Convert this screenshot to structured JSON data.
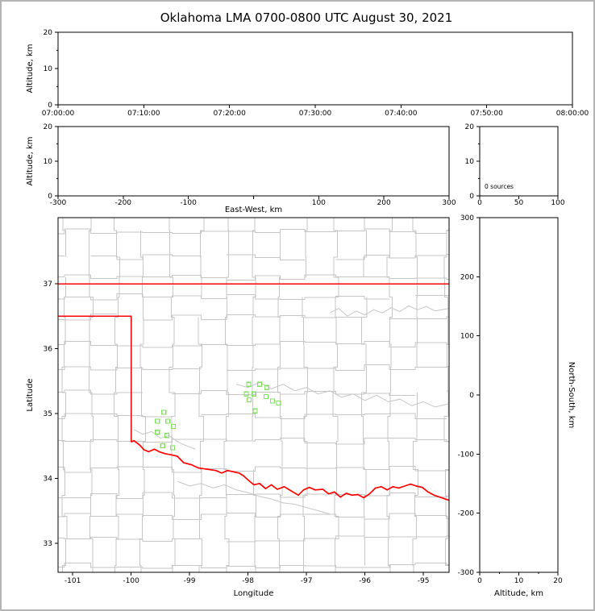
{
  "chart_data": {
    "type": "scatter",
    "subtype": "lma-multi-panel",
    "title": "Oklahoma LMA 0700-0800 UTC August 30, 2021",
    "colors": {
      "axis": "#000000",
      "county_lines": "#c6c6c6",
      "gray_rivers": "#c6c6c6",
      "state_border": "#ff0000",
      "red_river": "#ff0000",
      "station_marker": "#7fe25b",
      "frame": "#b4b4b4"
    },
    "panels": [
      {
        "id": "time_height",
        "type": "scatter",
        "xlabel": "",
        "ylabel": "Altitude, km",
        "xlim": [
          0,
          6
        ],
        "ylim": [
          0,
          20
        ],
        "xticks": [
          0,
          1,
          2,
          3,
          4,
          5,
          6
        ],
        "xtick_labels": [
          "07:00:00",
          "07:10:00",
          "07:20:00",
          "07:30:00",
          "07:40:00",
          "07:50:00",
          "08:00:00"
        ],
        "yticks": [
          0,
          10,
          20
        ],
        "yticks_minor": [
          5,
          15
        ],
        "points": []
      },
      {
        "id": "ew_height",
        "type": "scatter",
        "xlabel": "East-West, km",
        "ylabel": "Altitude, km",
        "xlim": [
          -300,
          300
        ],
        "ylim": [
          0,
          20
        ],
        "xticks": [
          -300,
          -200,
          -100,
          0,
          100,
          200,
          300
        ],
        "xtick_label_skip": [
          0
        ],
        "yticks": [
          0,
          10,
          20
        ],
        "yticks_minor": [
          5,
          15
        ],
        "points": []
      },
      {
        "id": "alt_hist",
        "type": "histogram",
        "annotation": "0 sources",
        "xlim": [
          0,
          100
        ],
        "ylim": [
          0,
          20
        ],
        "xticks": [
          0,
          50,
          100
        ],
        "yticks": [
          0,
          10,
          20
        ],
        "yticks_minor": [
          5,
          15
        ],
        "values": []
      },
      {
        "id": "map",
        "type": "map",
        "xlabel": "Longitude",
        "ylabel": "Latitude",
        "xlim": [
          -101.25,
          -94.56
        ],
        "ylim": [
          32.55,
          38.02
        ],
        "xticks": [
          -101,
          -100,
          -99,
          -98,
          -97,
          -96,
          -95
        ],
        "yticks": [
          33,
          34,
          35,
          36,
          37
        ],
        "stations": [
          [
            -99.44,
            35.02
          ],
          [
            -99.55,
            34.88
          ],
          [
            -99.37,
            34.88
          ],
          [
            -99.28,
            34.8
          ],
          [
            -99.55,
            34.71
          ],
          [
            -99.39,
            34.66
          ],
          [
            -99.46,
            34.5
          ],
          [
            -99.29,
            34.47
          ],
          [
            -97.99,
            35.45
          ],
          [
            -97.8,
            35.45
          ],
          [
            -97.68,
            35.4
          ],
          [
            -98.03,
            35.3
          ],
          [
            -97.9,
            35.3
          ],
          [
            -97.98,
            35.21
          ],
          [
            -97.69,
            35.26
          ],
          [
            -97.58,
            35.19
          ],
          [
            -97.48,
            35.16
          ],
          [
            -97.88,
            35.04
          ]
        ],
        "state_border_north": [
          [
            -101.25,
            37.0
          ],
          [
            -94.56,
            37.0
          ]
        ],
        "state_border_west": [
          [
            -101.25,
            36.5
          ],
          [
            -100.0,
            36.5
          ],
          [
            -100.0,
            34.56
          ]
        ],
        "red_river": [
          [
            -100.0,
            34.56
          ],
          [
            -99.95,
            34.58
          ],
          [
            -99.85,
            34.51
          ],
          [
            -99.78,
            34.44
          ],
          [
            -99.7,
            34.41
          ],
          [
            -99.6,
            34.45
          ],
          [
            -99.52,
            34.41
          ],
          [
            -99.42,
            34.38
          ],
          [
            -99.3,
            34.36
          ],
          [
            -99.21,
            34.34
          ],
          [
            -99.1,
            34.24
          ],
          [
            -98.97,
            34.21
          ],
          [
            -98.85,
            34.16
          ],
          [
            -98.7,
            34.14
          ],
          [
            -98.55,
            34.12
          ],
          [
            -98.45,
            34.08
          ],
          [
            -98.35,
            34.12
          ],
          [
            -98.25,
            34.1
          ],
          [
            -98.15,
            34.08
          ],
          [
            -98.08,
            34.04
          ],
          [
            -97.98,
            33.96
          ],
          [
            -97.9,
            33.9
          ],
          [
            -97.8,
            33.92
          ],
          [
            -97.7,
            33.84
          ],
          [
            -97.6,
            33.9
          ],
          [
            -97.5,
            33.83
          ],
          [
            -97.38,
            33.87
          ],
          [
            -97.25,
            33.8
          ],
          [
            -97.14,
            33.74
          ],
          [
            -97.05,
            33.82
          ],
          [
            -96.95,
            33.86
          ],
          [
            -96.85,
            33.82
          ],
          [
            -96.72,
            33.83
          ],
          [
            -96.62,
            33.76
          ],
          [
            -96.52,
            33.79
          ],
          [
            -96.42,
            33.71
          ],
          [
            -96.32,
            33.77
          ],
          [
            -96.22,
            33.74
          ],
          [
            -96.12,
            33.75
          ],
          [
            -96.02,
            33.7
          ],
          [
            -95.92,
            33.76
          ],
          [
            -95.82,
            33.85
          ],
          [
            -95.72,
            33.87
          ],
          [
            -95.62,
            33.82
          ],
          [
            -95.52,
            33.87
          ],
          [
            -95.42,
            33.85
          ],
          [
            -95.32,
            33.88
          ],
          [
            -95.22,
            33.91
          ],
          [
            -95.12,
            33.88
          ],
          [
            -95.02,
            33.86
          ],
          [
            -94.92,
            33.79
          ],
          [
            -94.82,
            33.74
          ],
          [
            -94.72,
            33.71
          ],
          [
            -94.56,
            33.66
          ]
        ],
        "gray_rivers": [
          [
            [
              -96.6,
              36.55
            ],
            [
              -96.45,
              36.62
            ],
            [
              -96.3,
              36.5
            ],
            [
              -96.15,
              36.58
            ],
            [
              -96.0,
              36.52
            ],
            [
              -95.85,
              36.6
            ],
            [
              -95.7,
              36.55
            ],
            [
              -95.55,
              36.63
            ],
            [
              -95.4,
              36.57
            ],
            [
              -95.25,
              36.66
            ],
            [
              -95.1,
              36.6
            ],
            [
              -94.95,
              36.65
            ],
            [
              -94.8,
              36.58
            ],
            [
              -94.56,
              36.62
            ]
          ],
          [
            [
              -98.2,
              35.45
            ],
            [
              -98.0,
              35.4
            ],
            [
              -97.8,
              35.48
            ],
            [
              -97.6,
              35.38
            ],
            [
              -97.4,
              35.45
            ],
            [
              -97.2,
              35.35
            ],
            [
              -97.0,
              35.4
            ],
            [
              -96.8,
              35.3
            ],
            [
              -96.6,
              35.35
            ],
            [
              -96.4,
              35.25
            ],
            [
              -96.2,
              35.3
            ],
            [
              -96.0,
              35.2
            ],
            [
              -95.8,
              35.28
            ],
            [
              -95.6,
              35.18
            ],
            [
              -95.4,
              35.22
            ],
            [
              -95.2,
              35.12
            ],
            [
              -95.0,
              35.18
            ],
            [
              -94.8,
              35.1
            ],
            [
              -94.56,
              35.15
            ]
          ],
          [
            [
              -99.2,
              33.95
            ],
            [
              -99.0,
              33.88
            ],
            [
              -98.8,
              33.92
            ],
            [
              -98.6,
              33.85
            ],
            [
              -98.4,
              33.9
            ],
            [
              -98.2,
              33.82
            ],
            [
              -98.0,
              33.78
            ],
            [
              -97.8,
              33.72
            ],
            [
              -97.6,
              33.68
            ],
            [
              -97.4,
              33.62
            ],
            [
              -97.2,
              33.6
            ],
            [
              -97.0,
              33.55
            ],
            [
              -96.8,
              33.5
            ],
            [
              -96.6,
              33.45
            ]
          ],
          [
            [
              -99.95,
              34.75
            ],
            [
              -99.8,
              34.68
            ],
            [
              -99.65,
              34.72
            ],
            [
              -99.5,
              34.62
            ],
            [
              -99.35,
              34.66
            ],
            [
              -99.2,
              34.56
            ],
            [
              -99.05,
              34.5
            ],
            [
              -98.9,
              34.45
            ]
          ]
        ],
        "county_grid": {
          "seed": 20210830,
          "lon_start": -101.6,
          "lon_end": -94.3,
          "lat_start": 32.2,
          "lat_end": 38.3,
          "lon_step": [
            0.42,
            0.6
          ],
          "lat_step": [
            0.3,
            0.46
          ],
          "jitter": 0.05,
          "skip": 0.06
        }
      },
      {
        "id": "ns_height",
        "type": "scatter",
        "xlabel": "Altitude, km",
        "ylabel_right": "North-South, km",
        "xlim": [
          0,
          20
        ],
        "ylim": [
          -300,
          300
        ],
        "xticks": [
          0,
          10,
          20
        ],
        "xticks_minor": [
          5,
          15
        ],
        "yticks": [
          300,
          200,
          100,
          0,
          -100,
          -200,
          -300
        ],
        "points": []
      }
    ]
  }
}
